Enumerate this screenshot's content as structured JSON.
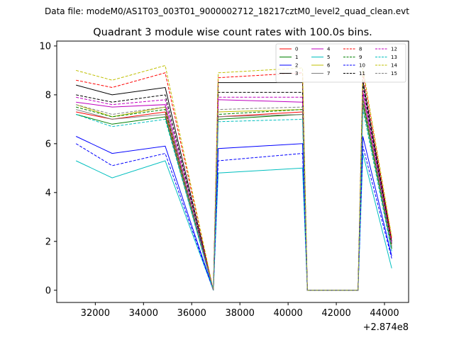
{
  "chart_data": {
    "type": "line",
    "suptitle": "Data file: modeM0/AS1T03_003T01_9000002712_18217cztM0_level2_quad_clean.evt",
    "title": "Quadrant 3 module wise count rates with 100.0s bins.",
    "xlabel": "",
    "ylabel": "",
    "x_offset_label": "+2.874e8",
    "xlim": [
      30400,
      45000
    ],
    "ylim": [
      -0.5,
      10.2
    ],
    "xticks": [
      "32000",
      "34000",
      "36000",
      "38000",
      "40000",
      "42000",
      "44000"
    ],
    "yticks": [
      "0",
      "2",
      "4",
      "6",
      "8",
      "10"
    ],
    "legend_position": "upper-right",
    "grid": false,
    "x_values": [
      31200,
      32700,
      34900,
      36900,
      37100,
      40600,
      40800,
      42900,
      43100,
      44300
    ],
    "series": [
      {
        "name": "0",
        "color": "#ff0000",
        "style": "solid",
        "values": [
          7.3,
          7.0,
          7.3,
          0,
          7.1,
          7.3,
          0,
          0,
          7.9,
          1.8
        ]
      },
      {
        "name": "1",
        "color": "#008000",
        "style": "solid",
        "values": [
          7.2,
          6.8,
          7.1,
          0,
          7.0,
          7.2,
          0,
          0,
          7.6,
          1.7
        ]
      },
      {
        "name": "2",
        "color": "#0000ff",
        "style": "solid",
        "values": [
          6.3,
          5.6,
          5.9,
          0,
          5.8,
          6.0,
          0,
          0,
          6.3,
          1.4
        ]
      },
      {
        "name": "3",
        "color": "#000000",
        "style": "solid",
        "values": [
          8.4,
          8.0,
          8.3,
          0,
          8.5,
          8.5,
          0,
          0,
          8.6,
          2.0
        ]
      },
      {
        "name": "4",
        "color": "#bf00bf",
        "style": "solid",
        "values": [
          7.7,
          7.5,
          7.6,
          0,
          7.8,
          7.7,
          0,
          0,
          8.1,
          1.9
        ]
      },
      {
        "name": "5",
        "color": "#00bfbf",
        "style": "solid",
        "values": [
          5.3,
          4.6,
          5.3,
          0,
          4.8,
          5.0,
          0,
          0,
          5.6,
          0.9
        ]
      },
      {
        "name": "6",
        "color": "#bfbf00",
        "style": "solid",
        "values": [
          7.6,
          7.1,
          7.5,
          0,
          7.3,
          7.4,
          0,
          0,
          7.9,
          1.8
        ]
      },
      {
        "name": "7",
        "color": "#808080",
        "style": "solid",
        "values": [
          7.4,
          7.0,
          7.2,
          0,
          7.1,
          7.2,
          0,
          0,
          7.7,
          1.7
        ]
      },
      {
        "name": "8",
        "color": "#ff0000",
        "style": "dashed",
        "values": [
          8.6,
          8.3,
          8.9,
          0,
          8.7,
          8.9,
          0,
          0,
          8.9,
          2.1
        ]
      },
      {
        "name": "9",
        "color": "#008000",
        "style": "dashed",
        "values": [
          7.5,
          7.1,
          7.4,
          0,
          7.2,
          7.4,
          0,
          0,
          7.8,
          1.7
        ]
      },
      {
        "name": "10",
        "color": "#0000ff",
        "style": "dashed",
        "values": [
          6.0,
          5.1,
          5.6,
          0,
          5.3,
          5.6,
          0,
          0,
          5.9,
          1.3
        ]
      },
      {
        "name": "11",
        "color": "#000000",
        "style": "dashed",
        "values": [
          8.0,
          7.7,
          8.0,
          0,
          8.1,
          8.1,
          0,
          0,
          8.4,
          1.9
        ]
      },
      {
        "name": "12",
        "color": "#bf00bf",
        "style": "dashed",
        "values": [
          7.9,
          7.6,
          7.8,
          0,
          7.9,
          7.9,
          0,
          0,
          8.2,
          1.9
        ]
      },
      {
        "name": "13",
        "color": "#00bfbf",
        "style": "dashed",
        "values": [
          7.2,
          6.7,
          7.0,
          0,
          6.9,
          7.0,
          0,
          0,
          7.4,
          1.6
        ]
      },
      {
        "name": "14",
        "color": "#bfbf00",
        "style": "dashed",
        "values": [
          9.0,
          8.6,
          9.2,
          0,
          8.9,
          9.1,
          0,
          0,
          9.1,
          2.2
        ]
      },
      {
        "name": "15",
        "color": "#808080",
        "style": "dashed",
        "values": [
          7.6,
          7.2,
          7.5,
          0,
          7.4,
          7.5,
          0,
          0,
          7.9,
          1.8
        ]
      }
    ]
  }
}
